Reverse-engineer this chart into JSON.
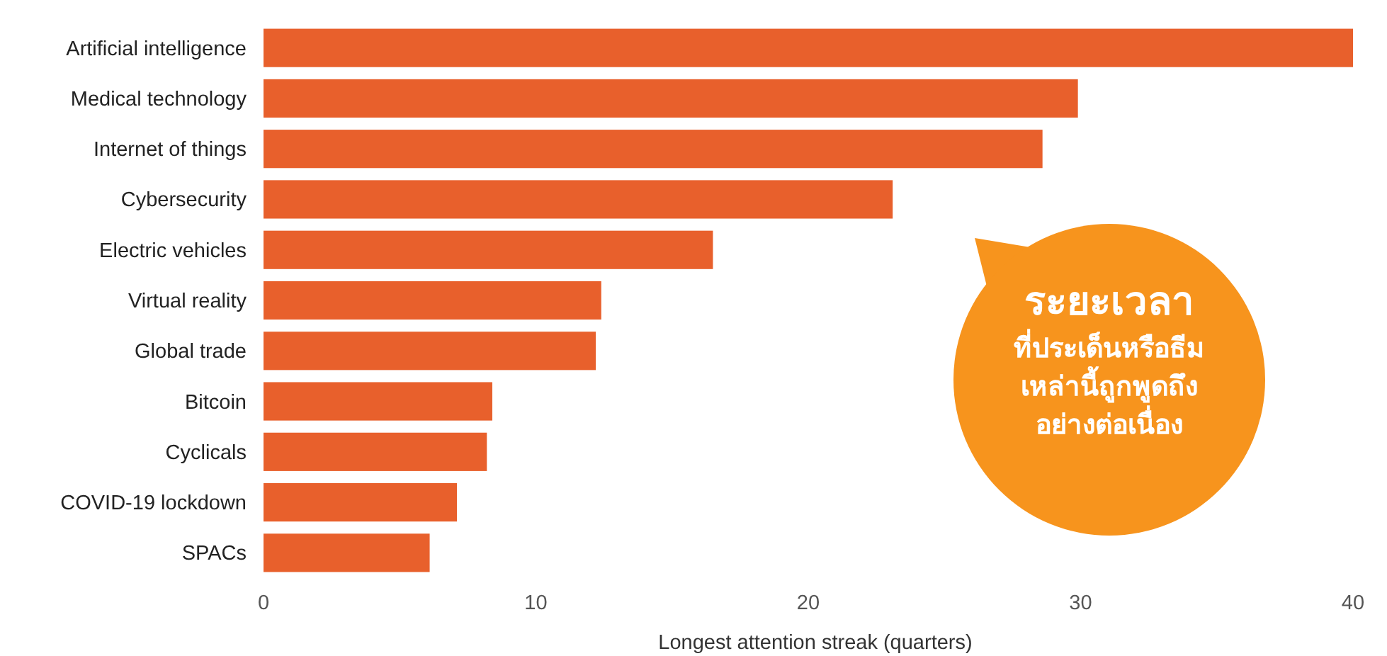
{
  "chart_data": {
    "type": "bar",
    "orientation": "horizontal",
    "categories": [
      "Artificial intelligence",
      "Medical technology",
      "Internet of things",
      "Cybersecurity",
      "Electric vehicles",
      "Virtual reality",
      "Global trade",
      "Bitcoin",
      "Cyclicals",
      "COVID-19 lockdown",
      "SPACs"
    ],
    "values": [
      40,
      29.9,
      28.6,
      23.1,
      16.5,
      12.4,
      12.2,
      8.4,
      8.2,
      7.1,
      6.1
    ],
    "color": "#e8602c",
    "xlim": [
      0,
      40
    ],
    "xticks": [
      0,
      10,
      20,
      30,
      40
    ],
    "xlabel": "Longest attention streak (quarters)",
    "annotations": [
      "ระยะเวลา",
      "ที่ประเด็นหรือธีม",
      "เหล่านี้ถูกพูดถึง",
      "อย่างต่อเนื่อง"
    ]
  }
}
